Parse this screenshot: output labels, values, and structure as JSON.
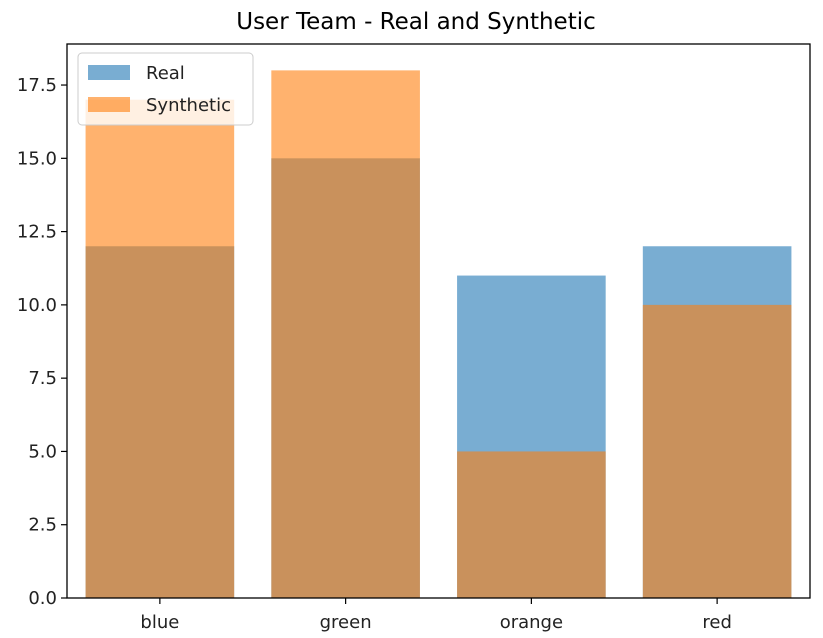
{
  "chart_data": {
    "type": "bar",
    "title": "User Team - Real and Synthetic",
    "xlabel": "",
    "ylabel": "",
    "categories": [
      "blue",
      "green",
      "orange",
      "red"
    ],
    "series": [
      {
        "name": "Real",
        "values": [
          12,
          15,
          11,
          12
        ],
        "color": "#1f77b4",
        "opacity": 0.6
      },
      {
        "name": "Synthetic",
        "values": [
          17,
          18,
          5,
          10
        ],
        "color": "#ff7f0e",
        "opacity": 0.6
      }
    ],
    "ylim": [
      0,
      18.9
    ],
    "yticks": [
      "0.0",
      "2.5",
      "5.0",
      "7.5",
      "10.0",
      "12.5",
      "15.0",
      "17.5"
    ],
    "grid": false,
    "legend_position": "top-left",
    "overlay": true
  }
}
